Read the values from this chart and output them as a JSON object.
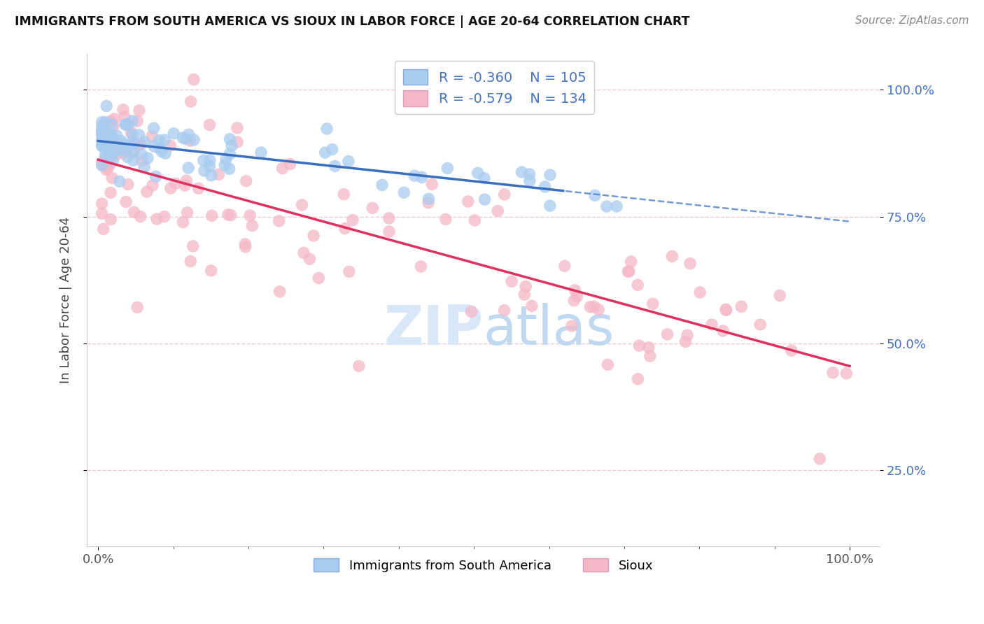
{
  "title": "IMMIGRANTS FROM SOUTH AMERICA VS SIOUX IN LABOR FORCE | AGE 20-64 CORRELATION CHART",
  "source": "Source: ZipAtlas.com",
  "ylabel": "In Labor Force | Age 20-64",
  "blue_R": -0.36,
  "blue_N": 105,
  "pink_R": -0.579,
  "pink_N": 134,
  "blue_color": "#A8CCF0",
  "pink_color": "#F5B8C8",
  "blue_line_color": "#3A6FBF",
  "pink_line_color": "#E03060",
  "legend1_label": "Immigrants from South America",
  "legend2_label": "Sioux",
  "grid_color": "#F0C8D0",
  "watermark_color": "#D8E8F8",
  "title_color": "#111111",
  "source_color": "#888888",
  "ylabel_color": "#444444",
  "tick_color": "#555555",
  "right_tick_color": "#4472C4",
  "spine_color": "#CCCCCC"
}
